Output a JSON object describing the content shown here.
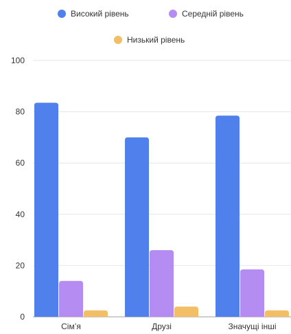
{
  "chart_data": {
    "type": "bar",
    "categories": [
      "Сім’я",
      "Друзі",
      "Значущі інші"
    ],
    "series": [
      {
        "name": "Високий рівень",
        "color": "#4F80EC",
        "values": [
          83.5,
          70,
          78.5
        ]
      },
      {
        "name": "Середній рівень",
        "color": "#B48CF2",
        "values": [
          14,
          26,
          18.5
        ]
      },
      {
        "name": "Низький рівень",
        "color": "#F2BE66",
        "values": [
          2.5,
          4,
          2.5
        ]
      }
    ],
    "ylim": [
      0,
      100
    ],
    "yticks": [
      0,
      20,
      40,
      60,
      80,
      100
    ],
    "grid": true,
    "legend_position": "top"
  }
}
